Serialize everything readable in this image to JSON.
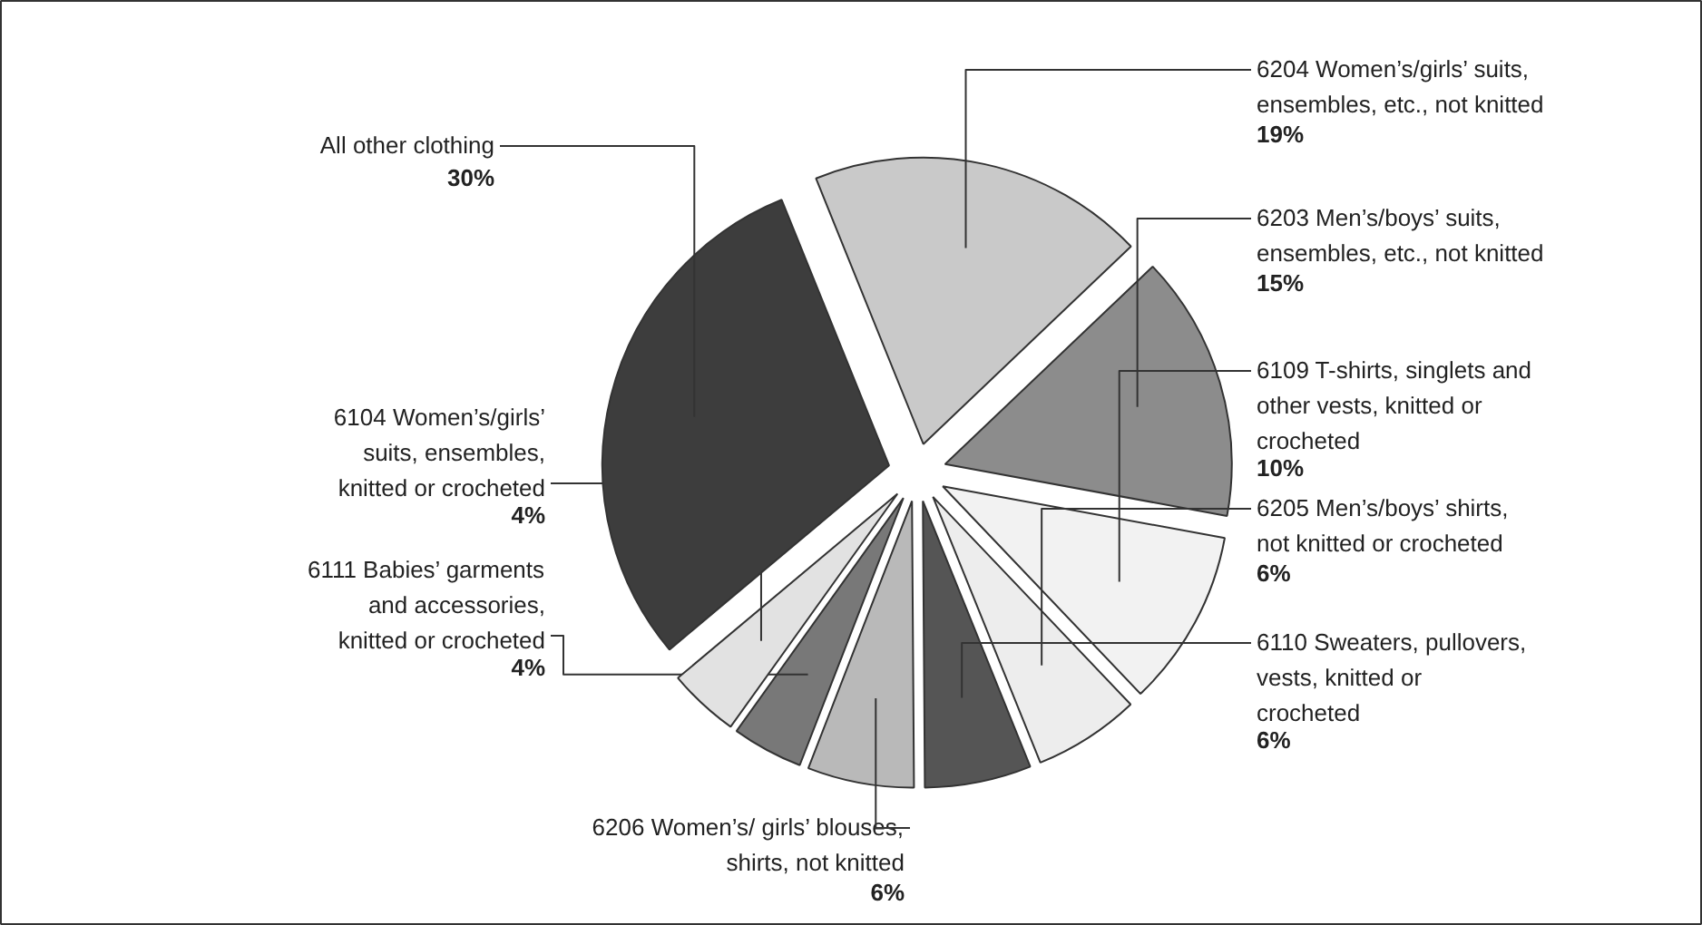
{
  "chart_data": {
    "type": "pie",
    "categories": [
      "6204 Women’s/girls’ suits, ensembles, etc., not knitted",
      "6203 Men’s/boys’ suits, ensembles, etc., not knitted",
      "6109 T-shirts, singlets and other vests, knitted or crocheted",
      "6205 Men’s/boys’ shirts, not knitted or crocheted",
      "6110 Sweaters, pullovers, vests, knitted or crocheted",
      "6206 Women’s/ girls’ blouses, shirts, not knitted",
      "6111 Babies’ garments and accessories, knitted or crocheted",
      "6104 Women’s/girls’ suits, ensembles, knitted or crocheted",
      "All other clothing"
    ],
    "values": [
      19,
      15,
      10,
      6,
      6,
      6,
      4,
      4,
      30
    ],
    "value_labels": [
      "19%",
      "15%",
      "10%",
      "6%",
      "6%",
      "6%",
      "4%",
      "4%",
      "30%"
    ],
    "colors": [
      "#c9c9c9",
      "#8c8c8c",
      "#f2f2f2",
      "#ededed",
      "#555555",
      "#b9b9b9",
      "#787878",
      "#e2e2e2",
      "#3d3d3d"
    ]
  }
}
